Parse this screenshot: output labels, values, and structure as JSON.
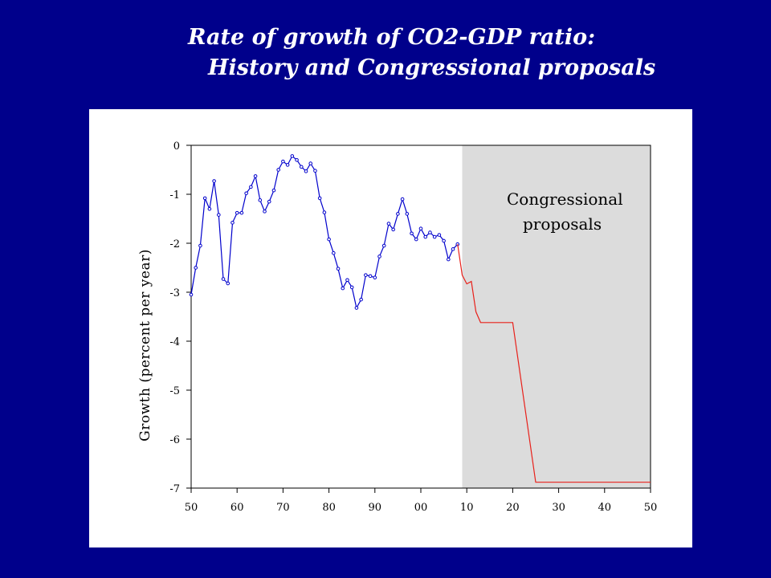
{
  "title": {
    "line1": "Rate of growth of CO2-GDP ratio:",
    "line2": "History and Congressional proposals"
  },
  "chart_data": {
    "type": "line",
    "ylabel": "Growth (percent per year)",
    "xlabel": "",
    "xlim": [
      1950,
      2050
    ],
    "ylim": [
      -7,
      0
    ],
    "x_ticks": [
      1950,
      1960,
      1970,
      1980,
      1990,
      2000,
      2010,
      2020,
      2030,
      2040,
      2050
    ],
    "x_tick_labels": [
      "50",
      "60",
      "70",
      "80",
      "90",
      "00",
      "10",
      "20",
      "30",
      "40",
      "50"
    ],
    "y_ticks": [
      0,
      -1,
      -2,
      -3,
      -4,
      -5,
      -6,
      -7
    ],
    "y_tick_labels": [
      "0",
      "-1",
      "-2",
      "-3",
      "-4",
      "-5",
      "-6",
      "-7"
    ],
    "shaded_region": {
      "x_start": 2009,
      "x_end": 2050,
      "color": "#dcdcdc"
    },
    "annotation": {
      "line1": "Congressional",
      "line2": "proposals"
    },
    "series": [
      {
        "kind": "history",
        "color": "#0000cc",
        "markers": true,
        "x": [
          1950,
          1951,
          1952,
          1953,
          1954,
          1955,
          1956,
          1957,
          1958,
          1959,
          1960,
          1961,
          1962,
          1963,
          1964,
          1965,
          1966,
          1967,
          1968,
          1969,
          1970,
          1971,
          1972,
          1973,
          1974,
          1975,
          1976,
          1977,
          1978,
          1979,
          1980,
          1981,
          1982,
          1983,
          1984,
          1985,
          1986,
          1987,
          1988,
          1989,
          1990,
          1991,
          1992,
          1993,
          1994,
          1995,
          1996,
          1997,
          1998,
          1999,
          2000,
          2001,
          2002,
          2003,
          2004,
          2005,
          2006,
          2007,
          2008
        ],
        "y": [
          -3.05,
          -2.5,
          -2.05,
          -1.08,
          -1.3,
          -0.73,
          -1.42,
          -2.73,
          -2.82,
          -1.58,
          -1.38,
          -1.38,
          -0.98,
          -0.85,
          -0.63,
          -1.12,
          -1.35,
          -1.15,
          -0.92,
          -0.5,
          -0.33,
          -0.4,
          -0.22,
          -0.3,
          -0.44,
          -0.53,
          -0.37,
          -0.52,
          -1.08,
          -1.37,
          -1.92,
          -2.2,
          -2.52,
          -2.92,
          -2.75,
          -2.9,
          -3.32,
          -3.15,
          -2.65,
          -2.67,
          -2.7,
          -2.27,
          -2.05,
          -1.6,
          -1.72,
          -1.4,
          -1.1,
          -1.4,
          -1.8,
          -1.92,
          -1.7,
          -1.87,
          -1.78,
          -1.87,
          -1.83,
          -1.95,
          -2.33,
          -2.12,
          -2.02
        ]
      },
      {
        "kind": "proposals",
        "color": "#e8201a",
        "markers": false,
        "x": [
          2008,
          2009,
          2010,
          2011,
          2012,
          2013,
          2014,
          2015,
          2016,
          2017,
          2018,
          2019,
          2020,
          2025,
          2030,
          2035,
          2040,
          2045,
          2050
        ],
        "y": [
          -2.02,
          -2.65,
          -2.83,
          -2.78,
          -3.4,
          -3.62,
          -3.62,
          -3.62,
          -3.62,
          -3.62,
          -3.62,
          -3.62,
          -3.62,
          -6.88,
          -6.88,
          -6.88,
          -6.88,
          -6.88,
          -6.88
        ]
      }
    ]
  }
}
